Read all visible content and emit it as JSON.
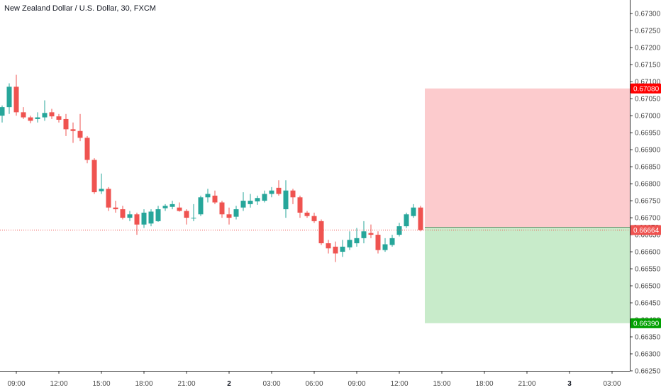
{
  "chart_data": {
    "type": "candlestick",
    "title": "New Zealand Dollar / U.S. Dollar, 30, FXCM",
    "y_ticks": [
      "0.67300",
      "0.67250",
      "0.67200",
      "0.67150",
      "0.67100",
      "0.67050",
      "0.67000",
      "0.66950",
      "0.66900",
      "0.66850",
      "0.66800",
      "0.66750",
      "0.66700",
      "0.66650",
      "0.66600",
      "0.66550",
      "0.66500",
      "0.66450",
      "0.66400",
      "0.66350",
      "0.66300",
      "0.66250"
    ],
    "ylim": [
      0.6625,
      0.6734
    ],
    "x_ticks": [
      {
        "label": "09:00",
        "bar": 2,
        "bold": false
      },
      {
        "label": "12:00",
        "bar": 8,
        "bold": false
      },
      {
        "label": "15:00",
        "bar": 14,
        "bold": false
      },
      {
        "label": "18:00",
        "bar": 20,
        "bold": false
      },
      {
        "label": "21:00",
        "bar": 26,
        "bold": false
      },
      {
        "label": "2",
        "bar": 32,
        "bold": true
      },
      {
        "label": "03:00",
        "bar": 38,
        "bold": false
      },
      {
        "label": "06:00",
        "bar": 44,
        "bold": false
      },
      {
        "label": "09:00",
        "bar": 50,
        "bold": false
      },
      {
        "label": "12:00",
        "bar": 56,
        "bold": false
      },
      {
        "label": "15:00",
        "bar": 62,
        "bold": false
      },
      {
        "label": "18:00",
        "bar": 68,
        "bold": false
      },
      {
        "label": "21:00",
        "bar": 74,
        "bold": false
      },
      {
        "label": "3",
        "bar": 80,
        "bold": true
      },
      {
        "label": "03:00",
        "bar": 86,
        "bold": false
      }
    ],
    "candles": [
      {
        "o": 0.67,
        "h": 0.6703,
        "l": 0.6698,
        "c": 0.67025
      },
      {
        "o": 0.67025,
        "h": 0.67095,
        "l": 0.67005,
        "c": 0.67085
      },
      {
        "o": 0.67085,
        "h": 0.6712,
        "l": 0.67,
        "c": 0.6701
      },
      {
        "o": 0.6701,
        "h": 0.67025,
        "l": 0.6699,
        "c": 0.66995
      },
      {
        "o": 0.66995,
        "h": 0.67,
        "l": 0.66978,
        "c": 0.66985
      },
      {
        "o": 0.6699,
        "h": 0.6701,
        "l": 0.6698,
        "c": 0.66995
      },
      {
        "o": 0.66995,
        "h": 0.67045,
        "l": 0.66985,
        "c": 0.67008
      },
      {
        "o": 0.6701,
        "h": 0.6702,
        "l": 0.6699,
        "c": 0.66998
      },
      {
        "o": 0.66998,
        "h": 0.67005,
        "l": 0.6698,
        "c": 0.66988
      },
      {
        "o": 0.6699,
        "h": 0.67005,
        "l": 0.6694,
        "c": 0.6696
      },
      {
        "o": 0.6696,
        "h": 0.6698,
        "l": 0.6692,
        "c": 0.66955
      },
      {
        "o": 0.66955,
        "h": 0.67005,
        "l": 0.66925,
        "c": 0.66935
      },
      {
        "o": 0.66935,
        "h": 0.6694,
        "l": 0.6686,
        "c": 0.6687
      },
      {
        "o": 0.6687,
        "h": 0.66875,
        "l": 0.6677,
        "c": 0.66775
      },
      {
        "o": 0.66778,
        "h": 0.6683,
        "l": 0.6677,
        "c": 0.66785
      },
      {
        "o": 0.66785,
        "h": 0.6679,
        "l": 0.6672,
        "c": 0.6673
      },
      {
        "o": 0.6673,
        "h": 0.6675,
        "l": 0.66715,
        "c": 0.66725
      },
      {
        "o": 0.66725,
        "h": 0.66735,
        "l": 0.66695,
        "c": 0.667
      },
      {
        "o": 0.667,
        "h": 0.6672,
        "l": 0.6669,
        "c": 0.6671
      },
      {
        "o": 0.6671,
        "h": 0.66715,
        "l": 0.6665,
        "c": 0.6668
      },
      {
        "o": 0.6668,
        "h": 0.66725,
        "l": 0.6667,
        "c": 0.66715
      },
      {
        "o": 0.66683,
        "h": 0.66725,
        "l": 0.66675,
        "c": 0.66718
      },
      {
        "o": 0.6669,
        "h": 0.66735,
        "l": 0.66688,
        "c": 0.66725
      },
      {
        "o": 0.66728,
        "h": 0.6674,
        "l": 0.6672,
        "c": 0.66735
      },
      {
        "o": 0.66732,
        "h": 0.6675,
        "l": 0.66725,
        "c": 0.6674
      },
      {
        "o": 0.6673,
        "h": 0.66745,
        "l": 0.66718,
        "c": 0.6672
      },
      {
        "o": 0.6672,
        "h": 0.66725,
        "l": 0.6668,
        "c": 0.667
      },
      {
        "o": 0.667,
        "h": 0.6674,
        "l": 0.6669,
        "c": 0.667
      },
      {
        "o": 0.6671,
        "h": 0.66765,
        "l": 0.66705,
        "c": 0.6676
      },
      {
        "o": 0.6676,
        "h": 0.66785,
        "l": 0.66745,
        "c": 0.6677
      },
      {
        "o": 0.66765,
        "h": 0.6678,
        "l": 0.6674,
        "c": 0.66745
      },
      {
        "o": 0.66745,
        "h": 0.6675,
        "l": 0.667,
        "c": 0.6671
      },
      {
        "o": 0.6671,
        "h": 0.6673,
        "l": 0.6668,
        "c": 0.667
      },
      {
        "o": 0.66703,
        "h": 0.66735,
        "l": 0.66695,
        "c": 0.66725
      },
      {
        "o": 0.6673,
        "h": 0.66775,
        "l": 0.6672,
        "c": 0.6675
      },
      {
        "o": 0.6674,
        "h": 0.6677,
        "l": 0.6673,
        "c": 0.6675
      },
      {
        "o": 0.66748,
        "h": 0.66765,
        "l": 0.66738,
        "c": 0.66758
      },
      {
        "o": 0.6675,
        "h": 0.6678,
        "l": 0.66745,
        "c": 0.6677
      },
      {
        "o": 0.6677,
        "h": 0.6679,
        "l": 0.6676,
        "c": 0.6678
      },
      {
        "o": 0.66788,
        "h": 0.6681,
        "l": 0.66765,
        "c": 0.6677
      },
      {
        "o": 0.66725,
        "h": 0.6681,
        "l": 0.667,
        "c": 0.6678
      },
      {
        "o": 0.6678,
        "h": 0.66785,
        "l": 0.6674,
        "c": 0.6676
      },
      {
        "o": 0.6676,
        "h": 0.66765,
        "l": 0.667,
        "c": 0.66715
      },
      {
        "o": 0.66715,
        "h": 0.6672,
        "l": 0.667,
        "c": 0.66705
      },
      {
        "o": 0.66705,
        "h": 0.66715,
        "l": 0.66685,
        "c": 0.6669
      },
      {
        "o": 0.6669,
        "h": 0.66695,
        "l": 0.6662,
        "c": 0.66625
      },
      {
        "o": 0.66625,
        "h": 0.66635,
        "l": 0.66595,
        "c": 0.6661
      },
      {
        "o": 0.66615,
        "h": 0.6663,
        "l": 0.6657,
        "c": 0.66595
      },
      {
        "o": 0.666,
        "h": 0.66635,
        "l": 0.66585,
        "c": 0.66615
      },
      {
        "o": 0.66613,
        "h": 0.6666,
        "l": 0.66605,
        "c": 0.66635
      },
      {
        "o": 0.66625,
        "h": 0.6667,
        "l": 0.66615,
        "c": 0.6664
      },
      {
        "o": 0.6664,
        "h": 0.6669,
        "l": 0.66625,
        "c": 0.6666
      },
      {
        "o": 0.66655,
        "h": 0.6668,
        "l": 0.6664,
        "c": 0.6665
      },
      {
        "o": 0.6665,
        "h": 0.6666,
        "l": 0.66595,
        "c": 0.66605
      },
      {
        "o": 0.66605,
        "h": 0.6664,
        "l": 0.666,
        "c": 0.66622
      },
      {
        "o": 0.6662,
        "h": 0.6665,
        "l": 0.66615,
        "c": 0.6664
      },
      {
        "o": 0.6665,
        "h": 0.66685,
        "l": 0.66645,
        "c": 0.66675
      },
      {
        "o": 0.66675,
        "h": 0.66715,
        "l": 0.6667,
        "c": 0.6671
      },
      {
        "o": 0.66705,
        "h": 0.6674,
        "l": 0.667,
        "c": 0.6673
      },
      {
        "o": 0.6673,
        "h": 0.66735,
        "l": 0.6666,
        "c": 0.66664
      }
    ],
    "current_price": 0.66664,
    "position": {
      "type": "long",
      "entry": 0.66672,
      "stop": 0.6708,
      "target": 0.6639,
      "stop_label": "0.67080",
      "entry_label": "0.66672",
      "target_label": "0.66390",
      "current_label": "0.66664"
    },
    "colors": {
      "up": "#26a69a",
      "down": "#ef5350",
      "stop_zone": "#fccbcd",
      "target_zone": "#c8ebca",
      "stop_badge": "#ff0000",
      "target_badge": "#00a000",
      "entry_badge": "#333333",
      "price_line": "#ef5350",
      "axis": "#333333",
      "tick_text": "#4a4a4a"
    }
  }
}
